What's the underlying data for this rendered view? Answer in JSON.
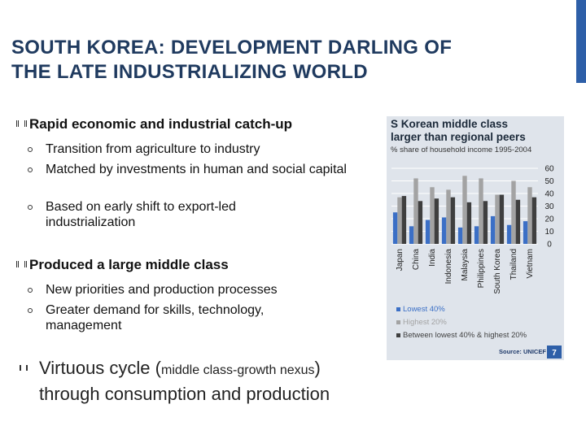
{
  "slide": {
    "title": [
      "SOUTH KOREA: DEVELOPMENT DARLING OF",
      "THE LATE INDUSTRIALIZING WORLD"
    ],
    "bullets": [
      {
        "text": "Rapid economic and industrial catch-up",
        "sub": [
          "Transition from agriculture to industry",
          "Matched by investments in human and social capital",
          "Based on early shift to export-led industrialization"
        ]
      },
      {
        "text": "Produced a large middle class",
        "sub": [
          "New priorities and production processes",
          "Greater demand for skills, technology, management"
        ]
      }
    ],
    "last_bullet": [
      "Virtuous cycle (",
      "middle class-growth nexus",
      ")",
      "through consumption and production"
    ]
  },
  "chart_data": {
    "type": "bar",
    "title": [
      "S Korean middle class",
      "larger than regional peers"
    ],
    "subtitle": "% share of household income 1995-2004",
    "categories": [
      "Japan",
      "China",
      "India",
      "Indonesia",
      "Malaysia",
      "Philippines",
      "South Korea",
      "Thailand",
      "Vietnam"
    ],
    "series": [
      {
        "name": "Lowest 40%",
        "color": "#3b6fc6",
        "values": [
          25,
          14,
          19,
          21,
          13,
          14,
          22,
          15,
          18
        ]
      },
      {
        "name": "Highest 20%",
        "color": "#a3a3a3",
        "values": [
          37,
          52,
          45,
          43,
          54,
          52,
          39,
          50,
          45
        ]
      },
      {
        "name": "Between lowest 40% & highest 20%",
        "color": "#3f3f3f",
        "values": [
          38,
          34,
          36,
          37,
          33,
          34,
          39,
          35,
          37
        ]
      }
    ],
    "ylim": [
      0,
      60
    ],
    "yticks": [
      0,
      10,
      20,
      30,
      40,
      50,
      60
    ],
    "grid": true,
    "source": "Source: UNICEF",
    "page": "7"
  }
}
